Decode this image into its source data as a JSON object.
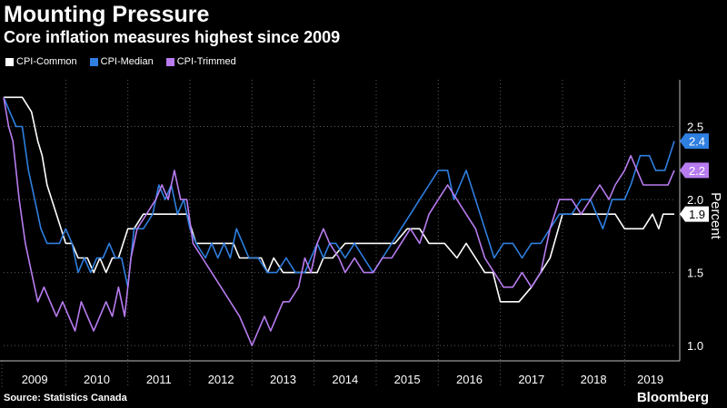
{
  "header": {
    "title": "Mounting Pressure",
    "subtitle": "Core inflation measures highest since 2009"
  },
  "footer": {
    "source": "Source: Statistics Canada",
    "brand": "Bloomberg"
  },
  "colors": {
    "background": "#000000",
    "grid": "#555555",
    "text": "#ffffff"
  },
  "chart_data": {
    "type": "line",
    "title": "Mounting Pressure",
    "subtitle": "Core inflation measures highest since 2009",
    "xlabel": "",
    "ylabel": "Percent",
    "xlim": [
      2009.0,
      2019.83
    ],
    "ylim": [
      0.92,
      2.82
    ],
    "yticks": [
      1.0,
      1.5,
      2.0,
      2.5
    ],
    "ytick_labels": [
      "1.0",
      "1.5",
      "2.0",
      "2.5"
    ],
    "xtick_labels": [
      "2009",
      "2010",
      "2011",
      "2012",
      "2013",
      "2014",
      "2015",
      "2016",
      "2017",
      "2018",
      "2019"
    ],
    "grid": true,
    "legend_position": "top-left",
    "series": [
      {
        "name": "CPI-Common",
        "color": "#ffffff",
        "end_label": "1.9",
        "points": [
          [
            2009.0,
            2.7
          ],
          [
            2009.3,
            2.7
          ],
          [
            2009.45,
            2.6
          ],
          [
            2009.55,
            2.4
          ],
          [
            2009.62,
            2.3
          ],
          [
            2009.7,
            2.1
          ],
          [
            2009.85,
            1.9
          ],
          [
            2010.0,
            1.7
          ],
          [
            2010.1,
            1.7
          ],
          [
            2010.2,
            1.6
          ],
          [
            2010.35,
            1.6
          ],
          [
            2010.45,
            1.5
          ],
          [
            2010.55,
            1.6
          ],
          [
            2010.65,
            1.5
          ],
          [
            2010.75,
            1.6
          ],
          [
            2010.85,
            1.6
          ],
          [
            2011.0,
            1.8
          ],
          [
            2011.1,
            1.8
          ],
          [
            2011.25,
            1.9
          ],
          [
            2011.45,
            1.9
          ],
          [
            2011.6,
            1.9
          ],
          [
            2011.75,
            1.9
          ],
          [
            2011.95,
            1.9
          ],
          [
            2012.1,
            1.7
          ],
          [
            2012.3,
            1.7
          ],
          [
            2012.5,
            1.7
          ],
          [
            2012.7,
            1.7
          ],
          [
            2012.8,
            1.6
          ],
          [
            2012.95,
            1.6
          ],
          [
            2013.15,
            1.6
          ],
          [
            2013.25,
            1.5
          ],
          [
            2013.35,
            1.6
          ],
          [
            2013.5,
            1.5
          ],
          [
            2013.65,
            1.5
          ],
          [
            2013.75,
            1.5
          ],
          [
            2013.9,
            1.5
          ],
          [
            2014.05,
            1.5
          ],
          [
            2014.15,
            1.6
          ],
          [
            2014.3,
            1.6
          ],
          [
            2014.5,
            1.7
          ],
          [
            2014.65,
            1.7
          ],
          [
            2014.8,
            1.7
          ],
          [
            2014.95,
            1.7
          ],
          [
            2015.1,
            1.7
          ],
          [
            2015.3,
            1.7
          ],
          [
            2015.5,
            1.8
          ],
          [
            2015.7,
            1.8
          ],
          [
            2015.85,
            1.7
          ],
          [
            2016.1,
            1.7
          ],
          [
            2016.3,
            1.6
          ],
          [
            2016.45,
            1.7
          ],
          [
            2016.6,
            1.6
          ],
          [
            2016.75,
            1.5
          ],
          [
            2016.88,
            1.5
          ],
          [
            2017.0,
            1.3
          ],
          [
            2017.15,
            1.3
          ],
          [
            2017.3,
            1.3
          ],
          [
            2017.5,
            1.4
          ],
          [
            2017.65,
            1.5
          ],
          [
            2017.8,
            1.6
          ],
          [
            2018.0,
            1.9
          ],
          [
            2018.25,
            1.9
          ],
          [
            2018.45,
            1.9
          ],
          [
            2018.65,
            1.9
          ],
          [
            2018.85,
            1.9
          ],
          [
            2019.0,
            1.8
          ],
          [
            2019.15,
            1.8
          ],
          [
            2019.3,
            1.8
          ],
          [
            2019.45,
            1.9
          ],
          [
            2019.55,
            1.8
          ],
          [
            2019.62,
            1.9
          ],
          [
            2019.8,
            1.9
          ]
        ]
      },
      {
        "name": "CPI-Median",
        "color": "#2e7fe0",
        "end_label": "2.4",
        "points": [
          [
            2009.0,
            2.7
          ],
          [
            2009.1,
            2.6
          ],
          [
            2009.2,
            2.5
          ],
          [
            2009.3,
            2.5
          ],
          [
            2009.4,
            2.2
          ],
          [
            2009.5,
            2.0
          ],
          [
            2009.6,
            1.8
          ],
          [
            2009.7,
            1.7
          ],
          [
            2009.8,
            1.7
          ],
          [
            2009.9,
            1.7
          ],
          [
            2010.0,
            1.8
          ],
          [
            2010.1,
            1.7
          ],
          [
            2010.2,
            1.5
          ],
          [
            2010.3,
            1.6
          ],
          [
            2010.4,
            1.5
          ],
          [
            2010.5,
            1.6
          ],
          [
            2010.6,
            1.6
          ],
          [
            2010.7,
            1.7
          ],
          [
            2010.8,
            1.6
          ],
          [
            2010.9,
            1.6
          ],
          [
            2011.0,
            1.4
          ],
          [
            2011.1,
            1.8
          ],
          [
            2011.25,
            1.8
          ],
          [
            2011.4,
            1.9
          ],
          [
            2011.5,
            2.1
          ],
          [
            2011.6,
            2.0
          ],
          [
            2011.7,
            2.1
          ],
          [
            2011.8,
            1.9
          ],
          [
            2011.9,
            2.0
          ],
          [
            2012.0,
            1.8
          ],
          [
            2012.1,
            1.7
          ],
          [
            2012.25,
            1.6
          ],
          [
            2012.35,
            1.7
          ],
          [
            2012.45,
            1.6
          ],
          [
            2012.55,
            1.7
          ],
          [
            2012.65,
            1.6
          ],
          [
            2012.75,
            1.8
          ],
          [
            2012.85,
            1.7
          ],
          [
            2012.95,
            1.6
          ],
          [
            2013.1,
            1.6
          ],
          [
            2013.25,
            1.5
          ],
          [
            2013.4,
            1.5
          ],
          [
            2013.55,
            1.6
          ],
          [
            2013.7,
            1.5
          ],
          [
            2013.85,
            1.5
          ],
          [
            2013.95,
            1.6
          ],
          [
            2014.05,
            1.7
          ],
          [
            2014.15,
            1.6
          ],
          [
            2014.25,
            1.7
          ],
          [
            2014.35,
            1.7
          ],
          [
            2014.5,
            1.6
          ],
          [
            2014.65,
            1.7
          ],
          [
            2014.8,
            1.6
          ],
          [
            2014.95,
            1.5
          ],
          [
            2015.1,
            1.6
          ],
          [
            2015.25,
            1.7
          ],
          [
            2015.4,
            1.8
          ],
          [
            2015.55,
            1.9
          ],
          [
            2015.7,
            2.0
          ],
          [
            2015.85,
            2.1
          ],
          [
            2016.0,
            2.2
          ],
          [
            2016.15,
            2.2
          ],
          [
            2016.25,
            2.0
          ],
          [
            2016.35,
            2.1
          ],
          [
            2016.45,
            2.2
          ],
          [
            2016.6,
            2.0
          ],
          [
            2016.75,
            1.8
          ],
          [
            2016.9,
            1.6
          ],
          [
            2017.05,
            1.7
          ],
          [
            2017.2,
            1.7
          ],
          [
            2017.35,
            1.6
          ],
          [
            2017.5,
            1.7
          ],
          [
            2017.65,
            1.7
          ],
          [
            2017.8,
            1.8
          ],
          [
            2017.95,
            1.9
          ],
          [
            2018.15,
            1.9
          ],
          [
            2018.3,
            2.0
          ],
          [
            2018.45,
            2.0
          ],
          [
            2018.55,
            1.9
          ],
          [
            2018.65,
            1.8
          ],
          [
            2018.8,
            2.0
          ],
          [
            2018.9,
            2.0
          ],
          [
            2019.0,
            2.0
          ],
          [
            2019.1,
            2.1
          ],
          [
            2019.25,
            2.3
          ],
          [
            2019.4,
            2.3
          ],
          [
            2019.5,
            2.2
          ],
          [
            2019.65,
            2.2
          ],
          [
            2019.8,
            2.4
          ]
        ]
      },
      {
        "name": "CPI-Trimmed",
        "color": "#b87cf0",
        "end_label": "2.2",
        "points": [
          [
            2009.0,
            2.7
          ],
          [
            2009.08,
            2.5
          ],
          [
            2009.15,
            2.4
          ],
          [
            2009.25,
            2.0
          ],
          [
            2009.35,
            1.7
          ],
          [
            2009.45,
            1.5
          ],
          [
            2009.55,
            1.3
          ],
          [
            2009.65,
            1.4
          ],
          [
            2009.75,
            1.3
          ],
          [
            2009.85,
            1.2
          ],
          [
            2009.95,
            1.3
          ],
          [
            2010.05,
            1.2
          ],
          [
            2010.15,
            1.1
          ],
          [
            2010.25,
            1.3
          ],
          [
            2010.35,
            1.2
          ],
          [
            2010.45,
            1.1
          ],
          [
            2010.55,
            1.2
          ],
          [
            2010.65,
            1.3
          ],
          [
            2010.75,
            1.2
          ],
          [
            2010.85,
            1.4
          ],
          [
            2010.95,
            1.2
          ],
          [
            2011.05,
            1.6
          ],
          [
            2011.15,
            1.8
          ],
          [
            2011.3,
            1.9
          ],
          [
            2011.45,
            2.0
          ],
          [
            2011.55,
            2.1
          ],
          [
            2011.65,
            2.0
          ],
          [
            2011.75,
            2.2
          ],
          [
            2011.85,
            2.0
          ],
          [
            2011.95,
            2.0
          ],
          [
            2012.05,
            1.7
          ],
          [
            2012.2,
            1.6
          ],
          [
            2012.35,
            1.5
          ],
          [
            2012.5,
            1.4
          ],
          [
            2012.65,
            1.3
          ],
          [
            2012.8,
            1.2
          ],
          [
            2012.9,
            1.1
          ],
          [
            2013.0,
            1.0
          ],
          [
            2013.1,
            1.1
          ],
          [
            2013.2,
            1.2
          ],
          [
            2013.3,
            1.1
          ],
          [
            2013.4,
            1.2
          ],
          [
            2013.5,
            1.3
          ],
          [
            2013.6,
            1.3
          ],
          [
            2013.75,
            1.4
          ],
          [
            2013.85,
            1.6
          ],
          [
            2013.95,
            1.5
          ],
          [
            2014.05,
            1.7
          ],
          [
            2014.15,
            1.8
          ],
          [
            2014.25,
            1.7
          ],
          [
            2014.4,
            1.6
          ],
          [
            2014.5,
            1.5
          ],
          [
            2014.65,
            1.6
          ],
          [
            2014.8,
            1.5
          ],
          [
            2014.95,
            1.5
          ],
          [
            2015.1,
            1.6
          ],
          [
            2015.25,
            1.6
          ],
          [
            2015.4,
            1.7
          ],
          [
            2015.55,
            1.8
          ],
          [
            2015.7,
            1.7
          ],
          [
            2015.85,
            1.9
          ],
          [
            2016.0,
            2.0
          ],
          [
            2016.15,
            2.1
          ],
          [
            2016.3,
            2.0
          ],
          [
            2016.45,
            1.9
          ],
          [
            2016.6,
            1.8
          ],
          [
            2016.75,
            1.6
          ],
          [
            2016.9,
            1.5
          ],
          [
            2017.05,
            1.4
          ],
          [
            2017.2,
            1.4
          ],
          [
            2017.35,
            1.5
          ],
          [
            2017.5,
            1.4
          ],
          [
            2017.65,
            1.5
          ],
          [
            2017.8,
            1.8
          ],
          [
            2017.95,
            2.0
          ],
          [
            2018.15,
            2.0
          ],
          [
            2018.3,
            1.9
          ],
          [
            2018.45,
            2.0
          ],
          [
            2018.6,
            2.1
          ],
          [
            2018.75,
            2.0
          ],
          [
            2018.85,
            2.1
          ],
          [
            2019.0,
            2.2
          ],
          [
            2019.1,
            2.3
          ],
          [
            2019.2,
            2.2
          ],
          [
            2019.3,
            2.1
          ],
          [
            2019.45,
            2.1
          ],
          [
            2019.6,
            2.1
          ],
          [
            2019.7,
            2.1
          ],
          [
            2019.8,
            2.2
          ]
        ]
      }
    ]
  }
}
